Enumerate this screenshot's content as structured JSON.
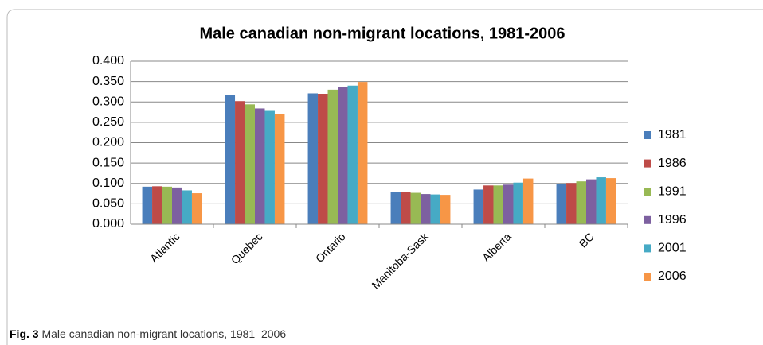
{
  "chart_data": {
    "type": "bar",
    "title": "Male canadian non-migrant locations, 1981-2006",
    "categories": [
      "Atlantic",
      "Quebec",
      "Ontario",
      "Manitoba-Sask",
      "Alberta",
      "BC"
    ],
    "series": [
      {
        "name": "1981",
        "color": "#4a7ebb",
        "values": [
          0.092,
          0.318,
          0.321,
          0.079,
          0.085,
          0.098
        ]
      },
      {
        "name": "1986",
        "color": "#be4b48",
        "values": [
          0.093,
          0.302,
          0.32,
          0.08,
          0.095,
          0.101
        ]
      },
      {
        "name": "1991",
        "color": "#98b954",
        "values": [
          0.092,
          0.294,
          0.33,
          0.077,
          0.095,
          0.105
        ]
      },
      {
        "name": "1996",
        "color": "#7d60a0",
        "values": [
          0.09,
          0.284,
          0.336,
          0.074,
          0.097,
          0.11
        ]
      },
      {
        "name": "2001",
        "color": "#46aac5",
        "values": [
          0.083,
          0.278,
          0.34,
          0.073,
          0.102,
          0.115
        ]
      },
      {
        "name": "2006",
        "color": "#f79646",
        "values": [
          0.076,
          0.271,
          0.349,
          0.072,
          0.112,
          0.113
        ]
      }
    ],
    "ylim": [
      0,
      0.4
    ],
    "yticks": [
      {
        "value": 0,
        "label": "0.000"
      },
      {
        "value": 0.05,
        "label": "0.050"
      },
      {
        "value": 0.1,
        "label": "0.100"
      },
      {
        "value": 0.15,
        "label": "0.150"
      },
      {
        "value": 0.2,
        "label": "0.200"
      },
      {
        "value": 0.25,
        "label": "0.250"
      },
      {
        "value": 0.3,
        "label": "0.300"
      },
      {
        "value": 0.35,
        "label": "0.350"
      },
      {
        "value": 0.4,
        "label": "0.400"
      }
    ],
    "grid": true,
    "legend": "right"
  },
  "caption": {
    "label": "Fig. 3",
    "text": "Male canadian non-migrant locations, 1981–2006"
  }
}
